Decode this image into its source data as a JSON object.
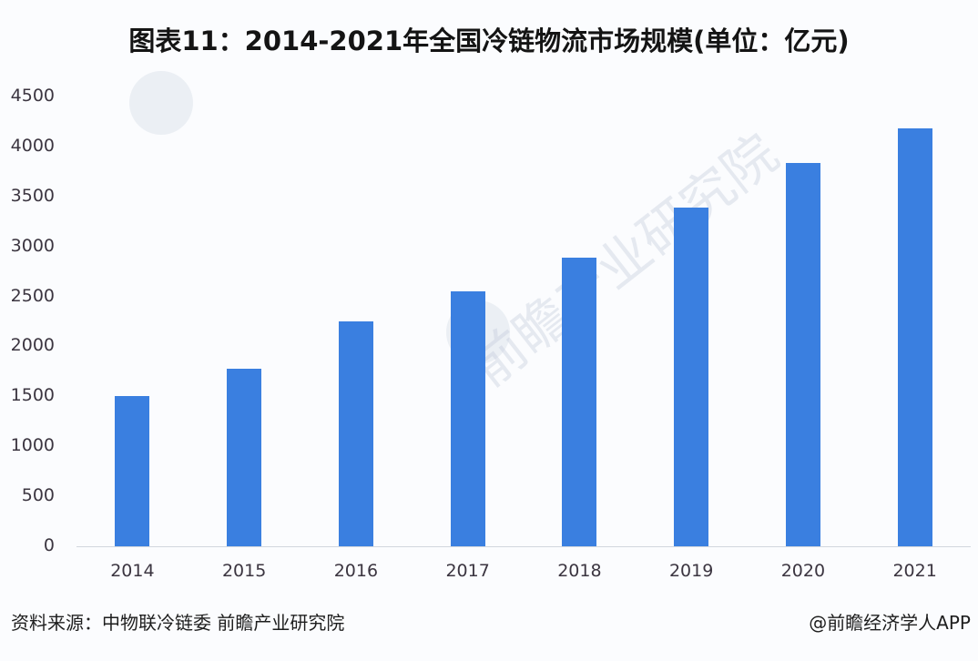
{
  "title": "图表11：2014-2021年全国冷链物流市场规模(单位：亿元)",
  "chart_data": {
    "type": "bar",
    "title": "图表11：2014-2021年全国冷链物流市场规模(单位：亿元)",
    "xlabel": "",
    "ylabel": "",
    "categories": [
      "2014",
      "2015",
      "2016",
      "2017",
      "2018",
      "2019",
      "2020",
      "2021"
    ],
    "values": [
      1500,
      1775,
      2250,
      2550,
      2886,
      3391,
      3832,
      4184
    ],
    "unit": "亿元",
    "ylim": [
      0,
      4500
    ],
    "yticks": [
      0,
      500,
      1000,
      1500,
      2000,
      2500,
      3000,
      3500,
      4000,
      4500
    ],
    "grid": false,
    "legend": "none",
    "bar_color": "#3a7fe0"
  },
  "yticks_labels": [
    "4500",
    "4000",
    "3500",
    "3000",
    "2500",
    "2000",
    "1500",
    "1000",
    "500",
    "0"
  ],
  "watermark": {
    "text": "前瞻产业研究院"
  },
  "footer": {
    "source": "资料来源：中物联冷链委 前瞻产业研究院",
    "credit": "@前瞻经济学人APP"
  }
}
